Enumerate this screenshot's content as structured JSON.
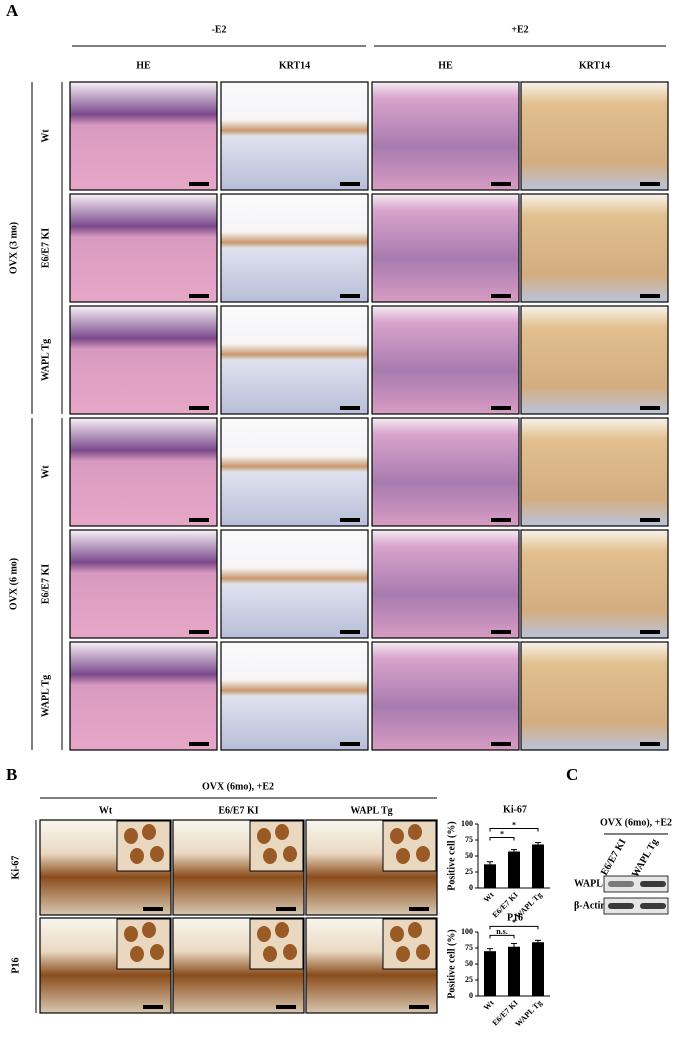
{
  "panel_a": {
    "label": "A",
    "groups": [
      {
        "label": "-E2",
        "columns": [
          "HE",
          "KRT14"
        ]
      },
      {
        "label": "+E2",
        "columns": [
          "HE",
          "KRT14"
        ]
      }
    ],
    "row_groups": [
      {
        "label": "OVX (3 mo)",
        "rows": [
          "Wt",
          "E6/E7 KI",
          "WAPL Tg"
        ]
      },
      {
        "label": "OVX (6 mo)",
        "rows": [
          "Wt",
          "E6/E7 KI",
          "WAPL Tg"
        ]
      }
    ]
  },
  "panel_b": {
    "label": "B",
    "heading": "OVX (6mo), +E2",
    "columns": [
      "Wt",
      "E6/E7 KI",
      "WAPL Tg"
    ],
    "rows": [
      "Ki-67",
      "P16"
    ]
  },
  "panel_c": {
    "label": "C",
    "heading": "OVX (6mo), +E2",
    "lanes": [
      "E6/E7 KI",
      "WAPL Tg"
    ],
    "blots": [
      "WAPL",
      "β-Actin"
    ]
  },
  "chart_data": [
    {
      "type": "bar",
      "title": "Ki-67",
      "ylabel": "Positive cell (%)",
      "categories": [
        "Wt",
        "E6/E7 KI",
        "WAPL Tg"
      ],
      "values": [
        37,
        57,
        68
      ],
      "errors": [
        4,
        3,
        3
      ],
      "color": "#000000",
      "ylim": [
        0,
        100
      ],
      "yticks": [
        0,
        25,
        50,
        75,
        100
      ],
      "significance": [
        "*",
        "*"
      ]
    },
    {
      "type": "bar",
      "title": "P16",
      "ylabel": "Positive cell (%)",
      "categories": [
        "Wt",
        "E6/E7 KI",
        "WAPL Tg"
      ],
      "values": [
        70,
        77,
        84
      ],
      "errors": [
        4,
        5,
        3
      ],
      "color": "#000000",
      "ylim": [
        0,
        100
      ],
      "yticks": [
        0,
        25,
        50,
        75,
        100
      ],
      "significance": [
        "n.s.",
        "*"
      ]
    }
  ]
}
